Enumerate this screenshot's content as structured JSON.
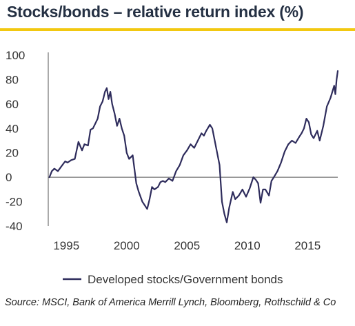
{
  "title": "Stocks/bonds – relative return index (%)",
  "source": "Source: MSCI, Bank of America Merrill Lynch, Bloomberg, Rothschild & Co",
  "colors": {
    "accent": "#f2c811",
    "series": "#2e2c5c",
    "title": "#243043"
  },
  "chart_data": {
    "type": "line",
    "title": "Stocks/bonds – relative return index (%)",
    "xlabel": "",
    "ylabel": "",
    "xlim": [
      1993.5,
      2017.5
    ],
    "ylim": [
      -40,
      100
    ],
    "yticks": [
      -40,
      -20,
      0,
      20,
      40,
      60,
      80,
      100
    ],
    "ytick_labels": [
      "-40",
      "-20",
      "0",
      "20",
      "40",
      "60",
      "80",
      "100"
    ],
    "xticks": [
      1995,
      2000,
      2005,
      2010,
      2015
    ],
    "xtick_labels": [
      "1995",
      "2000",
      "2005",
      "2010",
      "2015"
    ],
    "grid": false,
    "legend_position": "bottom",
    "series": [
      {
        "name": "Developed stocks/Government bonds",
        "x": [
          1993.6,
          1993.8,
          1994.0,
          1994.3,
          1994.6,
          1994.9,
          1995.1,
          1995.4,
          1995.7,
          1996.0,
          1996.3,
          1996.5,
          1996.8,
          1997.0,
          1997.2,
          1997.4,
          1997.6,
          1997.8,
          1998.0,
          1998.2,
          1998.35,
          1998.5,
          1998.65,
          1998.8,
          1999.0,
          1999.2,
          1999.4,
          1999.6,
          1999.8,
          2000.0,
          2000.2,
          2000.5,
          2000.8,
          2001.0,
          2001.3,
          2001.5,
          2001.7,
          2001.9,
          2002.1,
          2002.3,
          2002.6,
          2002.8,
          2003.0,
          2003.2,
          2003.5,
          2003.8,
          2004.1,
          2004.4,
          2004.7,
          2005.0,
          2005.3,
          2005.6,
          2005.9,
          2006.2,
          2006.4,
          2006.6,
          2006.9,
          2007.1,
          2007.3,
          2007.5,
          2007.7,
          2007.9,
          2008.1,
          2008.3,
          2008.5,
          2008.8,
          2009.0,
          2009.3,
          2009.6,
          2009.9,
          2010.2,
          2010.5,
          2010.7,
          2010.9,
          2011.1,
          2011.3,
          2011.5,
          2011.8,
          2012.0,
          2012.2,
          2012.5,
          2012.8,
          2013.1,
          2013.4,
          2013.7,
          2014.0,
          2014.3,
          2014.5,
          2014.7,
          2014.9,
          2015.1,
          2015.3,
          2015.5,
          2015.8,
          2016.0,
          2016.3,
          2016.6,
          2016.9,
          2017.2,
          2017.3,
          2017.4,
          2017.5
        ],
        "y": [
          0,
          5,
          7,
          5,
          9,
          13,
          12,
          14,
          15,
          29,
          22,
          27,
          26,
          39,
          40,
          44,
          48,
          58,
          62,
          70,
          73,
          64,
          70,
          60,
          52,
          42,
          48,
          40,
          34,
          20,
          15,
          18,
          -5,
          -12,
          -20,
          -23,
          -26,
          -18,
          -8,
          -10,
          -8,
          -4,
          -3,
          -4,
          -1,
          -3,
          5,
          10,
          18,
          22,
          27,
          24,
          30,
          36,
          34,
          38,
          43,
          40,
          30,
          20,
          10,
          -20,
          -30,
          -37,
          -25,
          -12,
          -18,
          -15,
          -10,
          -16,
          -9,
          0,
          -2,
          -5,
          -21,
          -10,
          -10,
          -15,
          -3,
          0,
          5,
          12,
          21,
          27,
          30,
          28,
          33,
          36,
          40,
          48,
          45,
          35,
          32,
          38,
          30,
          42,
          58,
          65,
          75,
          68,
          80,
          87
        ]
      }
    ]
  }
}
